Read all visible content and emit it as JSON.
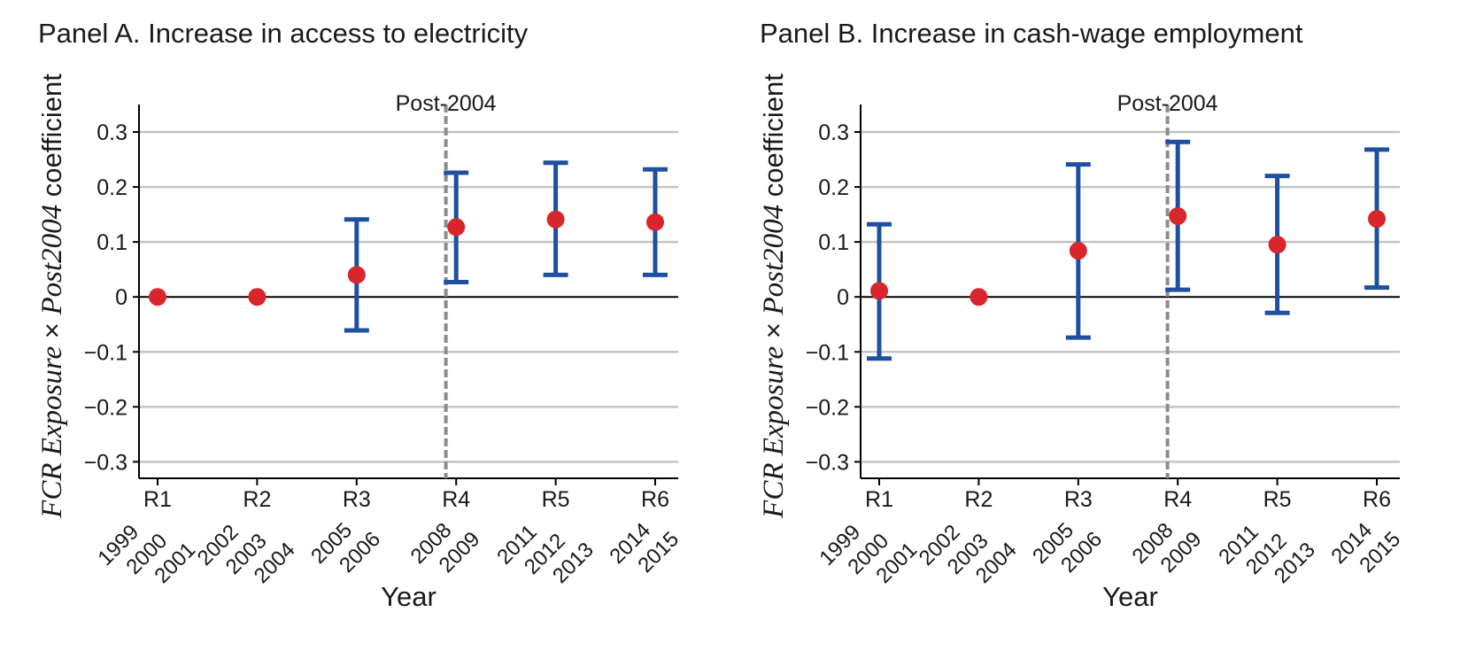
{
  "chart_data": [
    {
      "type": "scatter",
      "title": "Panel A. Increase in access to electricity",
      "xlabel": "Year",
      "ylabel_parts": [
        "FCR Exposure",
        " × ",
        "Post2004",
        " coefficient"
      ],
      "ylim": [
        -0.33,
        0.35
      ],
      "yticks": [
        0.3,
        0.2,
        0.1,
        0,
        -0.1,
        -0.2,
        -0.3
      ],
      "ytick_labels": [
        "0.3",
        "0.2",
        "0.1",
        "0",
        "−0.1",
        "−0.2",
        "−0.3"
      ],
      "grid": true,
      "categories": [
        "R1",
        "R2",
        "R3",
        "R4",
        "R5",
        "R6"
      ],
      "years": [
        [
          "1999",
          "2000",
          "2001"
        ],
        [
          "2002",
          "2003",
          "2004"
        ],
        [
          "2005",
          "2006"
        ],
        [
          "2008",
          "2009"
        ],
        [
          "2011",
          "2012",
          "2013"
        ],
        [
          "2014",
          "2015"
        ]
      ],
      "vline_label": "Post-2004",
      "point_color": "#d7262c",
      "ci_color": "#1f4fa0",
      "series": [
        {
          "estimate": [
            0.0,
            0.0,
            0.04,
            0.127,
            0.141,
            0.136
          ],
          "ci_low": [
            null,
            null,
            -0.061,
            0.027,
            0.04,
            0.04
          ],
          "ci_high": [
            null,
            null,
            0.141,
            0.226,
            0.244,
            0.232
          ]
        }
      ]
    },
    {
      "type": "scatter",
      "title": "Panel B. Increase in cash-wage employment",
      "xlabel": "Year",
      "ylabel_parts": [
        "FCR Exposure",
        " × ",
        "Post2004",
        " coefficient"
      ],
      "ylim": [
        -0.33,
        0.35
      ],
      "yticks": [
        0.3,
        0.2,
        0.1,
        0,
        -0.1,
        -0.2,
        -0.3
      ],
      "ytick_labels": [
        "0.3",
        "0.2",
        "0.1",
        "0",
        "−0.1",
        "−0.2",
        "−0.3"
      ],
      "grid": true,
      "categories": [
        "R1",
        "R2",
        "R3",
        "R4",
        "R5",
        "R6"
      ],
      "years": [
        [
          "1999",
          "2000",
          "2001"
        ],
        [
          "2002",
          "2003",
          "2004"
        ],
        [
          "2005",
          "2006"
        ],
        [
          "2008",
          "2009"
        ],
        [
          "2011",
          "2012",
          "2013"
        ],
        [
          "2014",
          "2015"
        ]
      ],
      "vline_label": "Post-2004",
      "point_color": "#d7262c",
      "ci_color": "#1f4fa0",
      "series": [
        {
          "estimate": [
            0.011,
            0.0,
            0.084,
            0.147,
            0.095,
            0.142
          ],
          "ci_low": [
            -0.112,
            null,
            -0.074,
            0.013,
            -0.029,
            0.017
          ],
          "ci_high": [
            0.132,
            null,
            0.241,
            0.282,
            0.22,
            0.268
          ]
        }
      ]
    }
  ]
}
